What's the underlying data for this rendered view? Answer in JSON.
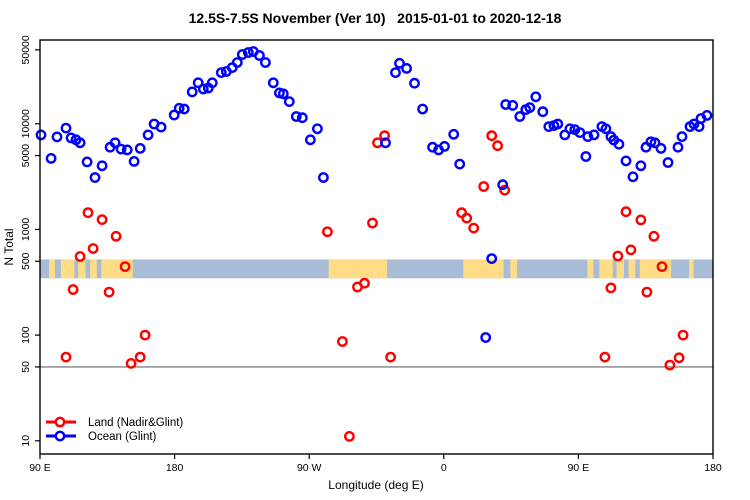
{
  "chart": {
    "title": "12.5S-7.5S November (Ver 10)   2015-01-01 to 2020-12-18",
    "xlabel": "Longitude (deg E)",
    "ylabel": "N Total"
  },
  "chart_data": {
    "type": "scatter",
    "title": "12.5S-7.5S November (Ver 10)   2015-01-01 to 2020-12-18",
    "xlabel": "Longitude (deg E)",
    "ylabel": "N Total",
    "x_axis": {
      "range_deg_east_continuous": [
        90,
        540
      ],
      "ticks": [
        90,
        180,
        270,
        360,
        450,
        540
      ],
      "tick_labels": [
        "90 E",
        "180",
        "90 W",
        "0",
        "90 E",
        "180"
      ]
    },
    "y_axis": {
      "scale": "log10",
      "range": [
        7.5,
        62000
      ],
      "ticks": [
        10,
        50,
        100,
        500,
        1000,
        5000,
        10000,
        50000
      ],
      "tick_labels": [
        "10",
        "50",
        "100",
        "500",
        "1000",
        "5000",
        "10000",
        "50000"
      ]
    },
    "grid": false,
    "reference_line_y": 50,
    "reference_line_color": "#666666",
    "map_strip": {
      "description": "latitude-band land/ocean map drawn as a horizontal ribbon near N=500",
      "ocean_color": "#A8BCD8",
      "land_color": "#FFDC85",
      "land_segments_deg": [
        [
          96,
          100
        ],
        [
          104,
          113
        ],
        [
          115.5,
          120.5
        ],
        [
          123.5,
          128
        ],
        [
          131,
          152
        ],
        [
          283,
          322
        ],
        [
          373,
          400
        ],
        [
          404.5,
          409
        ],
        [
          456,
          460
        ],
        [
          464,
          473
        ],
        [
          475.5,
          480.5
        ],
        [
          483.5,
          488
        ],
        [
          491,
          512
        ],
        [
          524,
          527
        ]
      ]
    },
    "legend": {
      "position": "bottom-left",
      "entries": [
        {
          "label": "Land (Nadir&Glint)",
          "color": "#FF0000"
        },
        {
          "label": "Ocean (Glint)",
          "color": "#0000FF"
        }
      ]
    },
    "series": [
      {
        "name": "Land (Nadir&Glint)",
        "color": "#FF0000",
        "marker": "open-circle",
        "points": [
          [
            107.4,
            62
          ],
          [
            112.1,
            270
          ],
          [
            116.8,
            555
          ],
          [
            122.1,
            1440
          ],
          [
            125.5,
            660
          ],
          [
            131.5,
            1240
          ],
          [
            136.2,
            255
          ],
          [
            140.9,
            860
          ],
          [
            146.9,
            445
          ],
          [
            150.9,
            54
          ],
          [
            157.0,
            62
          ],
          [
            160.3,
            100
          ],
          [
            282.2,
            950
          ],
          [
            292.2,
            87
          ],
          [
            296.9,
            11
          ],
          [
            302.3,
            285
          ],
          [
            307.0,
            310
          ],
          [
            312.3,
            1150
          ],
          [
            315.7,
            6600
          ],
          [
            320.4,
            7700
          ],
          [
            324.4,
            62
          ],
          [
            371.9,
            1440
          ],
          [
            375.3,
            1280
          ],
          [
            380.0,
            1030
          ],
          [
            386.7,
            2550
          ],
          [
            392.0,
            7700
          ],
          [
            396.0,
            6200
          ],
          [
            400.7,
            2350
          ],
          [
            467.7,
            62
          ],
          [
            471.7,
            280
          ],
          [
            476.4,
            560
          ],
          [
            481.8,
            1470
          ],
          [
            485.1,
            640
          ],
          [
            491.8,
            1230
          ],
          [
            495.8,
            255
          ],
          [
            500.5,
            860
          ],
          [
            505.9,
            445
          ],
          [
            511.2,
            52
          ],
          [
            517.3,
            61
          ],
          [
            520.0,
            100
          ]
        ]
      },
      {
        "name": "Ocean (Glint)",
        "color": "#0000FF",
        "marker": "open-circle",
        "points": [
          [
            90.7,
            7850
          ],
          [
            97.4,
            4700
          ],
          [
            101.4,
            7500
          ],
          [
            107.4,
            9100
          ],
          [
            110.8,
            7350
          ],
          [
            114.1,
            7050
          ],
          [
            116.8,
            6600
          ],
          [
            121.5,
            4350
          ],
          [
            126.8,
            3100
          ],
          [
            131.5,
            4000
          ],
          [
            136.9,
            6000
          ],
          [
            140.2,
            6600
          ],
          [
            144.2,
            5750
          ],
          [
            148.3,
            5650
          ],
          [
            152.9,
            4400
          ],
          [
            157.0,
            5850
          ],
          [
            162.3,
            7850
          ],
          [
            166.3,
            9950
          ],
          [
            171.0,
            9300
          ],
          [
            179.7,
            12100
          ],
          [
            183.1,
            14000
          ],
          [
            186.4,
            13800
          ],
          [
            191.8,
            20000
          ],
          [
            195.8,
            24400
          ],
          [
            199.2,
            21300
          ],
          [
            202.5,
            21800
          ],
          [
            205.2,
            24400
          ],
          [
            211.2,
            30500
          ],
          [
            214.6,
            31200
          ],
          [
            218.6,
            34000
          ],
          [
            221.9,
            38000
          ],
          [
            225.3,
            45200
          ],
          [
            229.3,
            47200
          ],
          [
            232.6,
            48300
          ],
          [
            236.7,
            44200
          ],
          [
            240.7,
            38000
          ],
          [
            246.0,
            24400
          ],
          [
            250.1,
            19600
          ],
          [
            252.7,
            19200
          ],
          [
            256.7,
            16200
          ],
          [
            261.4,
            11700
          ],
          [
            265.4,
            11400
          ],
          [
            270.8,
            7050
          ],
          [
            275.5,
            8950
          ],
          [
            279.5,
            3100
          ],
          [
            321.0,
            6600
          ],
          [
            327.7,
            30500
          ],
          [
            330.4,
            37300
          ],
          [
            335.1,
            33400
          ],
          [
            340.4,
            24200
          ],
          [
            345.8,
            13800
          ],
          [
            352.5,
            6000
          ],
          [
            356.5,
            5650
          ],
          [
            360.5,
            6100
          ],
          [
            366.6,
            7950
          ],
          [
            370.6,
            4150
          ],
          [
            388.0,
            95
          ],
          [
            392.0,
            530
          ],
          [
            399.4,
            2650
          ],
          [
            401.4,
            15200
          ],
          [
            406.1,
            14900
          ],
          [
            410.8,
            11700
          ],
          [
            414.8,
            13600
          ],
          [
            417.5,
            14200
          ],
          [
            421.5,
            18000
          ],
          [
            426.2,
            13000
          ],
          [
            430.2,
            9400
          ],
          [
            433.6,
            9600
          ],
          [
            436.2,
            9950
          ],
          [
            440.9,
            7850
          ],
          [
            444.3,
            8950
          ],
          [
            447.6,
            8800
          ],
          [
            451.0,
            8250
          ],
          [
            455.0,
            4900
          ],
          [
            456.3,
            7550
          ],
          [
            460.4,
            7850
          ],
          [
            465.7,
            9400
          ],
          [
            468.4,
            8950
          ],
          [
            471.7,
            7550
          ],
          [
            473.7,
            7000
          ],
          [
            477.1,
            6400
          ],
          [
            481.8,
            4450
          ],
          [
            486.5,
            3150
          ],
          [
            491.8,
            4000
          ],
          [
            495.2,
            6000
          ],
          [
            498.5,
            6750
          ],
          [
            501.2,
            6600
          ],
          [
            505.2,
            5850
          ],
          [
            509.9,
            4300
          ],
          [
            516.6,
            6000
          ],
          [
            519.3,
            7550
          ],
          [
            524.6,
            9400
          ],
          [
            527.3,
            9950
          ],
          [
            530.7,
            9400
          ],
          [
            532.0,
            11200
          ],
          [
            536.0,
            12000
          ]
        ]
      }
    ]
  }
}
